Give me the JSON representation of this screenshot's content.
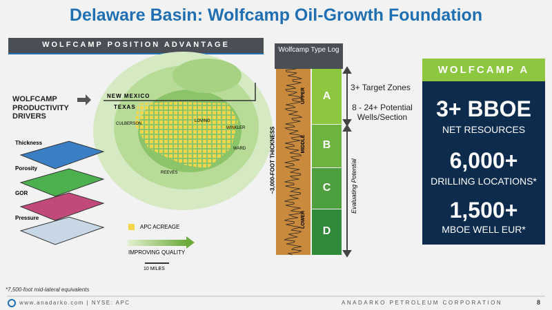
{
  "header": {
    "title": "Delaware Basin: Wolfcamp Oil-Growth Foundation"
  },
  "panel": {
    "title": "WOLFCAMP POSITION ADVANTAGE",
    "drivers": "WOLFCAMP PRODUCTIVITY DRIVERS",
    "layers": [
      "Thickness",
      "Porosity",
      "GOR",
      "Pressure"
    ],
    "map_labels": {
      "new_mexico": "NEW MEXICO",
      "texas": "TEXAS",
      "culberson": "CULBERSON",
      "loving": "LOVING",
      "winkler": "WINKLER",
      "ward": "WARD",
      "reeves": "REEVES"
    },
    "legend": {
      "acreage": "APC ACREAGE",
      "quality": "IMPROVING QUALITY",
      "scale": "10 MILES"
    }
  },
  "type_log": {
    "title": "Wolfcamp Type Log",
    "zones": [
      "A",
      "B",
      "C",
      "D"
    ],
    "intervals": [
      "UPPER",
      "MIDDLE",
      "LOWER"
    ],
    "thickness": "~3,000-FOOT THICKNESS",
    "evaluating": "Evaluating Potential",
    "target_zones": "3+ Target Zones",
    "wells": "8 - 24+ Potential Wells/Section"
  },
  "summary": {
    "title": "WOLFCAMP A",
    "items": [
      {
        "value": "3+ BBOE",
        "label": "NET RESOURCES"
      },
      {
        "value": "6,000+",
        "label": "DRILLING LOCATIONS*"
      },
      {
        "value": "1,500+",
        "label": "MBOE WELL EUR*"
      }
    ]
  },
  "footnote": "*7,500-foot mid-lateral equivalents",
  "footer": {
    "website": "www.anadarko.com | NYSE: APC",
    "company": "ANADARKO PETROLEUM CORPORATION",
    "page": "8"
  }
}
